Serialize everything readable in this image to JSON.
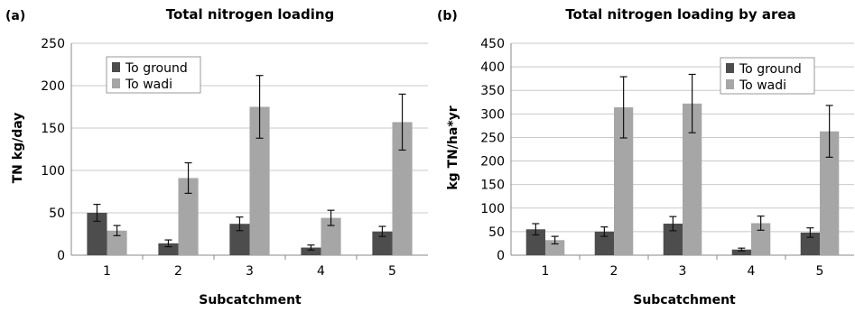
{
  "chart_data": [
    {
      "panel": "(a)",
      "type": "bar",
      "title": "Total nitrogen loading",
      "xlabel": "Subcatchment",
      "ylabel": "TN kg/day",
      "categories": [
        "1",
        "2",
        "3",
        "4",
        "5"
      ],
      "ylim": [
        0,
        250
      ],
      "yticks": [
        "0",
        "50",
        "100",
        "150",
        "200",
        "250"
      ],
      "grid": true,
      "legend_position": "top-left",
      "series": [
        {
          "name": "To ground",
          "color": "#4d4d4d",
          "values": [
            50,
            14,
            37,
            9,
            28
          ],
          "errors": [
            10,
            4,
            8,
            3,
            6
          ]
        },
        {
          "name": "To wadi",
          "color": "#a6a6a6",
          "values": [
            29,
            91,
            175,
            44,
            157
          ],
          "errors": [
            6,
            18,
            37,
            9,
            33
          ]
        }
      ]
    },
    {
      "panel": "(b)",
      "type": "bar",
      "title": "Total nitrogen loading by area",
      "xlabel": "Subcatchment",
      "ylabel": "kg TN/ha*yr",
      "categories": [
        "1",
        "2",
        "3",
        "4",
        "5"
      ],
      "ylim": [
        0,
        450
      ],
      "yticks": [
        "0",
        "50",
        "100",
        "150",
        "200",
        "250",
        "300",
        "350",
        "400",
        "450"
      ],
      "grid": true,
      "legend_position": "top-right",
      "series": [
        {
          "name": "To ground",
          "color": "#4d4d4d",
          "values": [
            55,
            50,
            67,
            12,
            48
          ],
          "errors": [
            12,
            10,
            15,
            3,
            10
          ]
        },
        {
          "name": "To wadi",
          "color": "#a6a6a6",
          "values": [
            32,
            314,
            322,
            68,
            263
          ],
          "errors": [
            8,
            65,
            62,
            15,
            55
          ]
        }
      ]
    }
  ]
}
